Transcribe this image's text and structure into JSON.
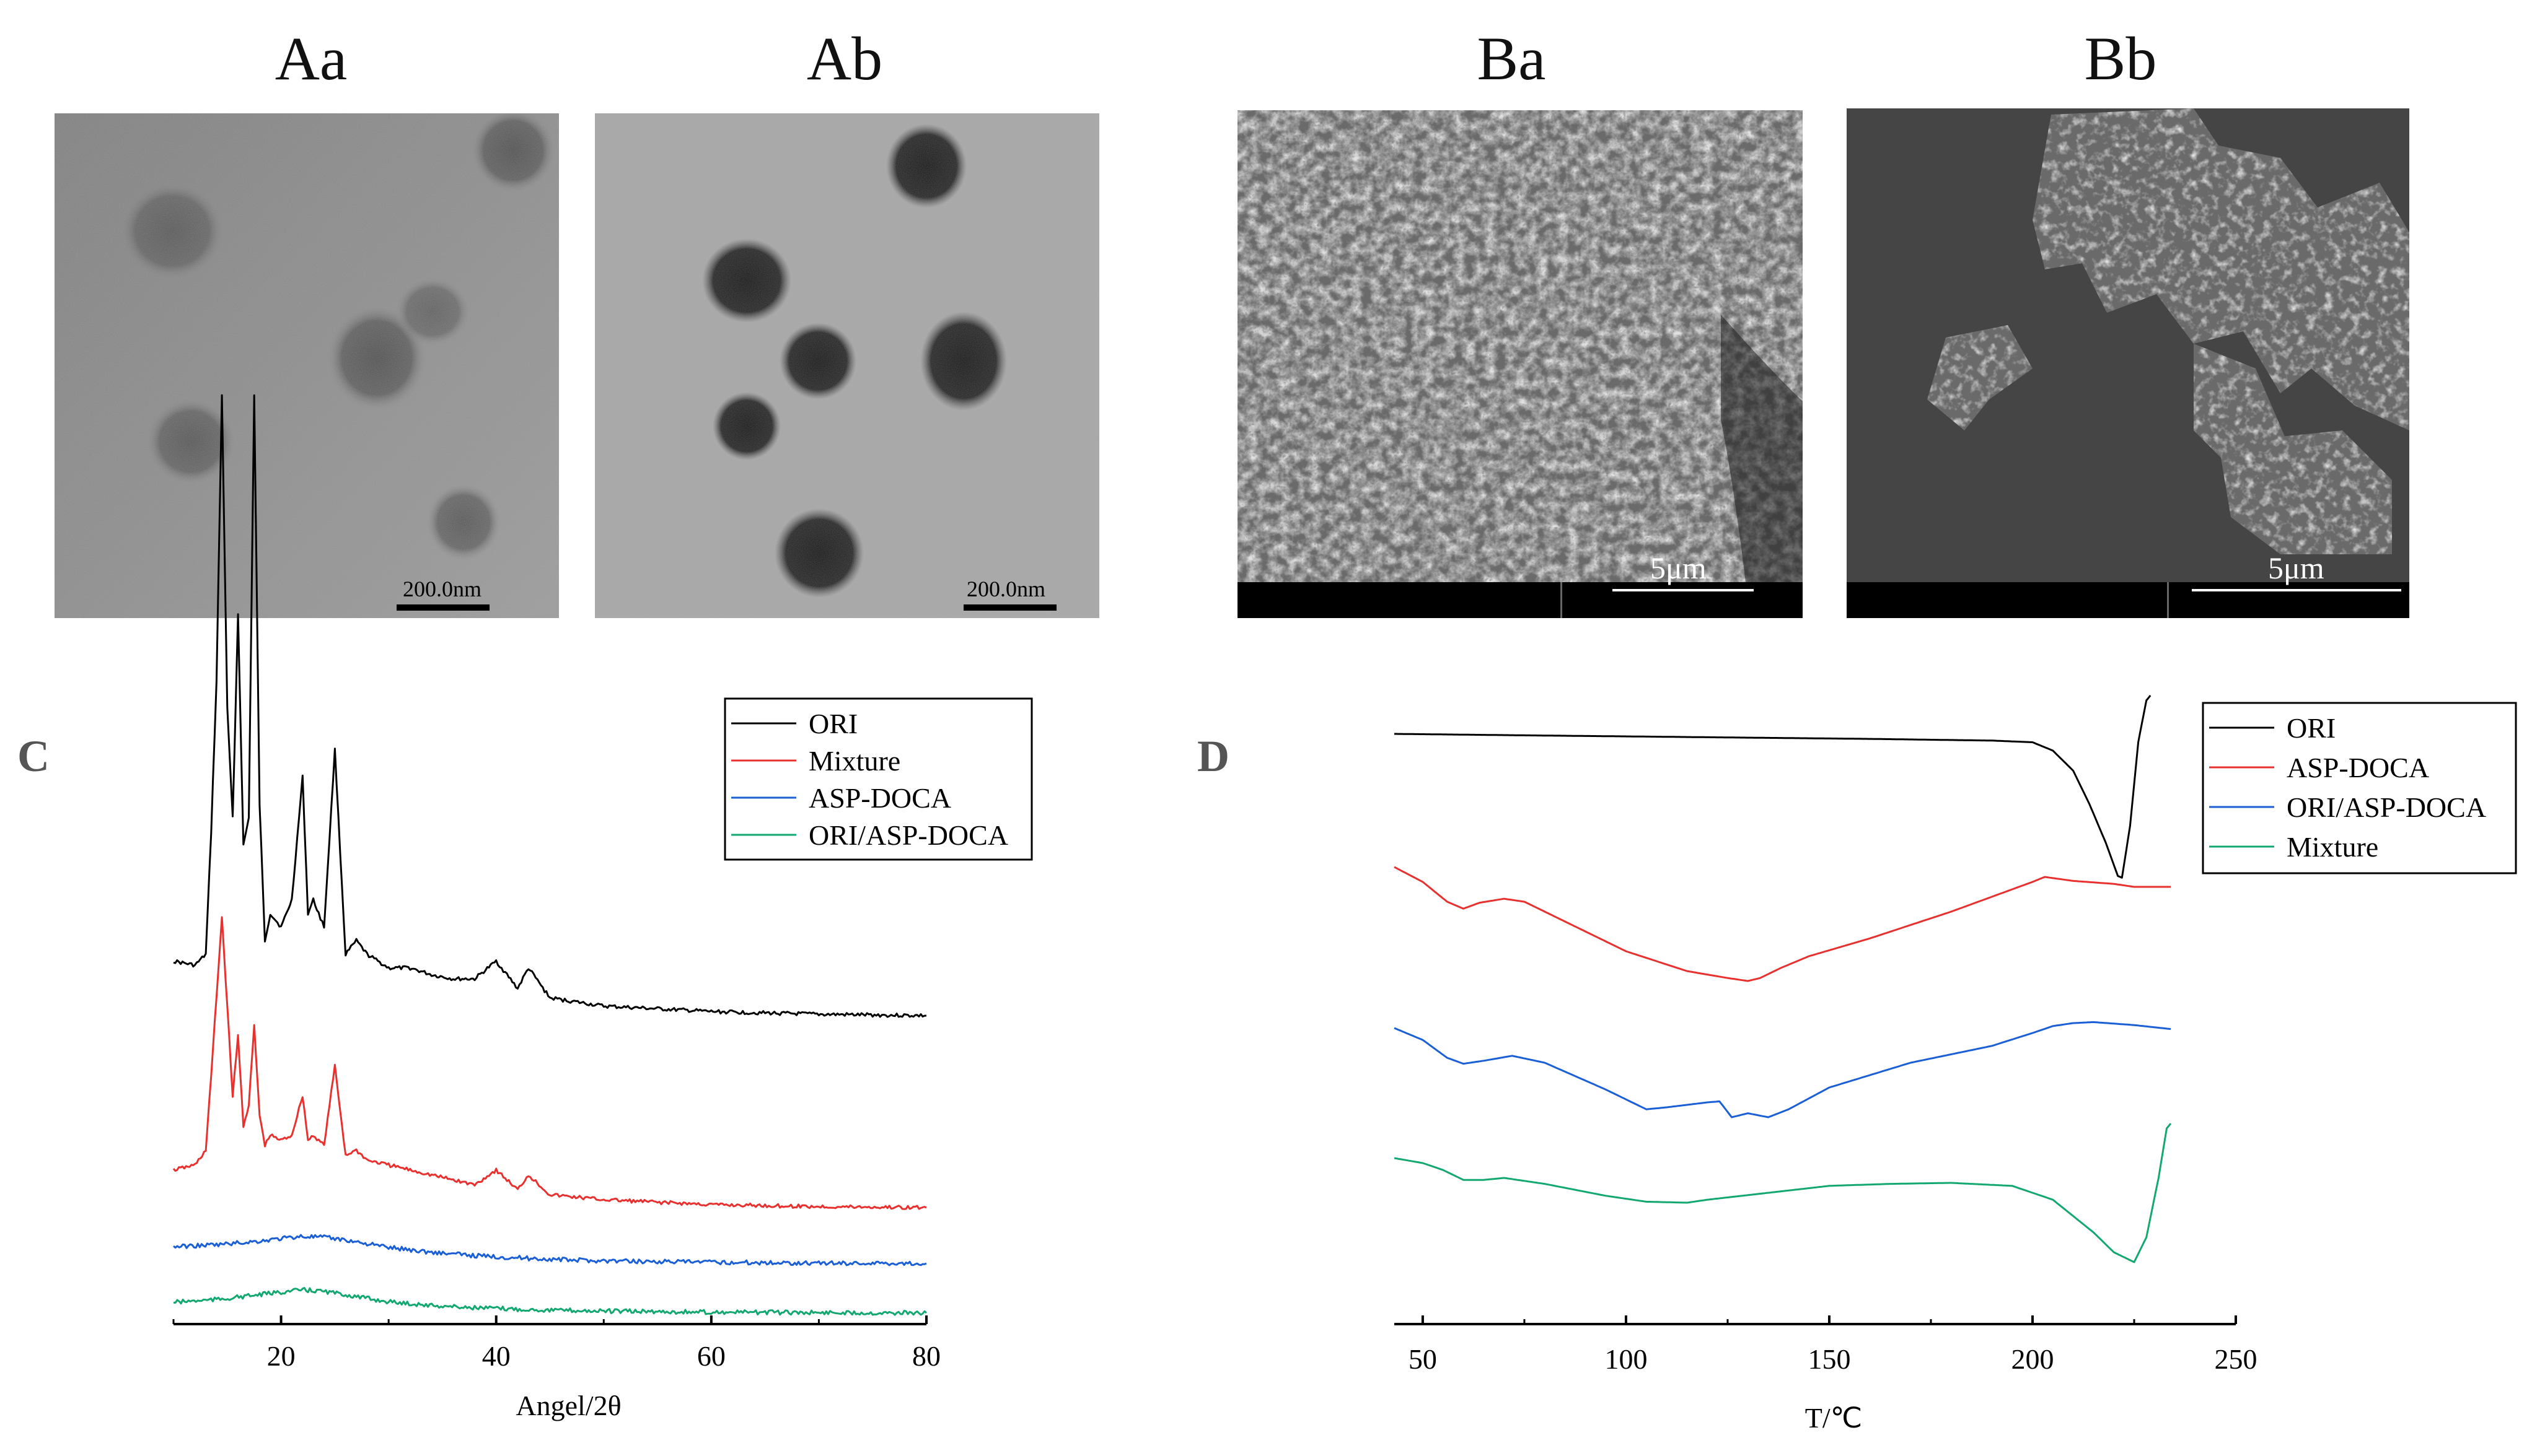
{
  "panels": {
    "Aa": {
      "title": "Aa",
      "scale": "200.0nm"
    },
    "Ab": {
      "title": "Ab",
      "scale": "200.0nm"
    },
    "Ba": {
      "title": "Ba",
      "scale": "5μm"
    },
    "Bb": {
      "title": "Bb",
      "scale": "5μm"
    },
    "C": {
      "letter": "C"
    },
    "D": {
      "letter": "D"
    }
  },
  "colors": {
    "black": "#000000",
    "red": "#e8312f",
    "blue": "#1a5fd6",
    "green": "#12a870"
  },
  "chart_data": [
    {
      "panel": "C",
      "type": "line",
      "xlabel": "Angel/2θ",
      "ylabel": "",
      "xlim": [
        10,
        80
      ],
      "xticks": [
        20,
        40,
        60,
        80
      ],
      "yticks": false,
      "legend_position": "top-right",
      "series": [
        {
          "name": "ORI",
          "color": "#000000",
          "offset": 0,
          "x": [
            10,
            12,
            13,
            13.5,
            14,
            14.5,
            15,
            15.5,
            16,
            16.5,
            17,
            17.5,
            18,
            18.5,
            19,
            20,
            21,
            22,
            22.5,
            23,
            24,
            25,
            26,
            27,
            28,
            30,
            32,
            34,
            36,
            38,
            40,
            42,
            43,
            45,
            50,
            60,
            70,
            80
          ],
          "y": [
            0.55,
            0.52,
            0.6,
            1.5,
            2.6,
            4.7,
            2.4,
            1.6,
            3.1,
            1.4,
            1.6,
            4.7,
            1.7,
            0.7,
            0.9,
            0.8,
            1.0,
            1.9,
            0.9,
            1.0,
            0.8,
            2.1,
            0.6,
            0.7,
            0.6,
            0.5,
            0.5,
            0.45,
            0.42,
            0.42,
            0.55,
            0.35,
            0.5,
            0.28,
            0.22,
            0.18,
            0.16,
            0.15
          ]
        },
        {
          "name": "Mixture",
          "color": "#e8312f",
          "offset": 0,
          "x": [
            10,
            12,
            13,
            13.5,
            14,
            14.5,
            15,
            15.5,
            16,
            16.5,
            17,
            17.5,
            18,
            18.5,
            19,
            20,
            21,
            22,
            22.5,
            23,
            24,
            25,
            26,
            27,
            28,
            30,
            32,
            34,
            36,
            38,
            40,
            42,
            43,
            45,
            50,
            60,
            70,
            80
          ],
          "y": [
            0.55,
            0.6,
            0.75,
            1.5,
            2.3,
            3.1,
            2.2,
            1.3,
            1.9,
            1.0,
            1.2,
            2.0,
            1.1,
            0.8,
            0.9,
            0.85,
            0.9,
            1.3,
            0.85,
            0.9,
            0.8,
            1.6,
            0.7,
            0.75,
            0.65,
            0.6,
            0.55,
            0.5,
            0.45,
            0.4,
            0.55,
            0.35,
            0.5,
            0.3,
            0.25,
            0.2,
            0.18,
            0.17
          ]
        },
        {
          "name": "ASP-DOCA",
          "color": "#1a5fd6",
          "offset": 0,
          "x": [
            10,
            14,
            18,
            20,
            22,
            24,
            26,
            28,
            30,
            34,
            38,
            42,
            46,
            50,
            60,
            70,
            80
          ],
          "y": [
            0.6,
            0.65,
            0.75,
            0.82,
            0.88,
            0.85,
            0.78,
            0.68,
            0.58,
            0.45,
            0.36,
            0.3,
            0.25,
            0.22,
            0.18,
            0.16,
            0.15
          ]
        },
        {
          "name": "ORI/ASP-DOCA",
          "color": "#12a870",
          "offset": 0,
          "x": [
            10,
            14,
            18,
            20,
            22,
            24,
            26,
            28,
            30,
            34,
            38,
            42,
            46,
            50,
            60,
            70,
            80
          ],
          "y": [
            0.35,
            0.42,
            0.55,
            0.62,
            0.68,
            0.64,
            0.55,
            0.45,
            0.36,
            0.26,
            0.2,
            0.16,
            0.13,
            0.11,
            0.08,
            0.07,
            0.06
          ]
        }
      ]
    },
    {
      "panel": "D",
      "type": "line",
      "xlabel": "T/℃",
      "ylabel": "",
      "xlim": [
        43,
        250
      ],
      "xticks": [
        50,
        100,
        150,
        200,
        250
      ],
      "yticks": false,
      "legend_position": "top-right",
      "series": [
        {
          "name": "ORI",
          "color": "#000000",
          "x": [
            43,
            80,
            120,
            160,
            190,
            200,
            205,
            210,
            214,
            218,
            221,
            222,
            224,
            226,
            228,
            229
          ],
          "y": [
            0.0,
            -0.01,
            -0.02,
            -0.03,
            -0.04,
            -0.05,
            -0.1,
            -0.22,
            -0.42,
            -0.65,
            -0.85,
            -0.86,
            -0.55,
            -0.05,
            0.2,
            0.23
          ]
        },
        {
          "name": "ASP-DOCA",
          "color": "#e8312f",
          "x": [
            43,
            50,
            56,
            60,
            64,
            70,
            75,
            85,
            100,
            115,
            125,
            130,
            133,
            138,
            145,
            160,
            180,
            200,
            203,
            210,
            220,
            225,
            234
          ],
          "y": [
            0.0,
            -0.15,
            -0.35,
            -0.42,
            -0.36,
            -0.32,
            -0.35,
            -0.55,
            -0.85,
            -1.05,
            -1.12,
            -1.15,
            -1.12,
            -1.02,
            -0.9,
            -0.72,
            -0.45,
            -0.15,
            -0.1,
            -0.14,
            -0.17,
            -0.2,
            -0.2
          ]
        },
        {
          "name": "ORI/ASP-DOCA",
          "color": "#1a5fd6",
          "x": [
            43,
            50,
            56,
            60,
            65,
            72,
            80,
            95,
            105,
            110,
            120,
            123,
            126,
            130,
            135,
            140,
            150,
            170,
            190,
            200,
            205,
            210,
            215,
            225,
            234
          ],
          "y": [
            0.0,
            -0.12,
            -0.3,
            -0.36,
            -0.33,
            -0.28,
            -0.35,
            -0.62,
            -0.82,
            -0.8,
            -0.75,
            -0.74,
            -0.9,
            -0.86,
            -0.9,
            -0.82,
            -0.6,
            -0.35,
            -0.18,
            -0.05,
            0.02,
            0.05,
            0.06,
            0.03,
            -0.01
          ]
        },
        {
          "name": "Mixture",
          "color": "#12a870",
          "x": [
            43,
            50,
            55,
            60,
            65,
            70,
            80,
            95,
            105,
            115,
            120,
            135,
            150,
            165,
            180,
            195,
            205,
            215,
            220,
            225,
            228,
            231,
            233,
            234
          ],
          "y": [
            0.0,
            -0.05,
            -0.12,
            -0.22,
            -0.22,
            -0.2,
            -0.26,
            -0.38,
            -0.44,
            -0.45,
            -0.42,
            -0.35,
            -0.28,
            -0.26,
            -0.25,
            -0.28,
            -0.42,
            -0.75,
            -0.95,
            -1.05,
            -0.8,
            -0.2,
            0.3,
            0.35
          ]
        }
      ]
    }
  ]
}
